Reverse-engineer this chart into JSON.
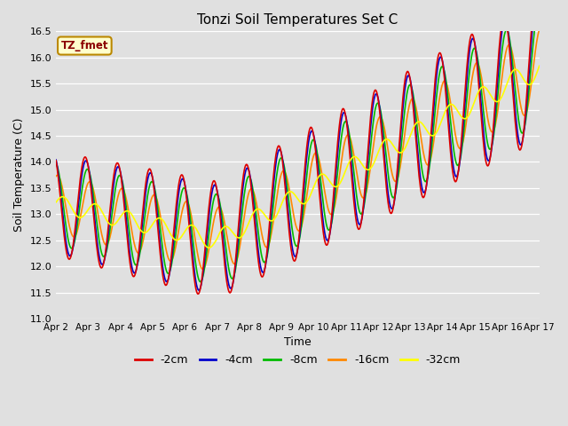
{
  "title": "Tonzi Soil Temperatures Set C",
  "xlabel": "Time",
  "ylabel": "Soil Temperature (C)",
  "ylim": [
    11.0,
    16.5
  ],
  "ylim_ticks": [
    11.0,
    11.5,
    12.0,
    12.5,
    13.0,
    13.5,
    14.0,
    14.5,
    15.0,
    15.5,
    16.0,
    16.5
  ],
  "legend_label": "TZ_fmet",
  "series_labels": [
    "-2cm",
    "-4cm",
    "-8cm",
    "-16cm",
    "-32cm"
  ],
  "series_colors": [
    "#dd0000",
    "#0000cc",
    "#00bb00",
    "#ff8800",
    "#ffff00"
  ],
  "line_width": 1.2,
  "bg_color": "#e0e0e0",
  "x_tick_labels": [
    "Apr 2",
    "Apr 3",
    "Apr 4",
    "Apr 5",
    "Apr 6",
    "Apr 7",
    "Apr 8",
    "Apr 9",
    "Apr 10",
    "Apr 11",
    "Apr 12",
    "Apr 13",
    "Apr 14",
    "Apr 15",
    "Apr 16",
    "Apr 17"
  ],
  "n_days": 15,
  "ppd": 48
}
